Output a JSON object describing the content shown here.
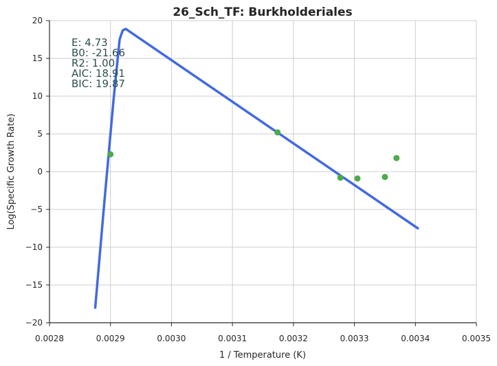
{
  "chart_data": {
    "type": "scatter",
    "title": "26_Sch_TF: Burkholderiales",
    "xlabel": "1 / Temperature (K)",
    "ylabel": "Log(Specific Growth Rate)",
    "xlim": [
      0.0028,
      0.0035
    ],
    "ylim": [
      -20,
      20
    ],
    "xticks": [
      "0.0028",
      "0.0029",
      "0.0030",
      "0.0031",
      "0.0032",
      "0.0033",
      "0.0034",
      "0.0035"
    ],
    "yticks": [
      "−20",
      "−15",
      "−10",
      "−5",
      "0",
      "5",
      "10",
      "15",
      "20"
    ],
    "xtick_values": [
      0.0028,
      0.0029,
      0.003,
      0.0031,
      0.0032,
      0.0033,
      0.0034,
      0.0035
    ],
    "ytick_values": [
      -20,
      -15,
      -10,
      -5,
      0,
      5,
      10,
      15,
      20
    ],
    "grid": true,
    "points": {
      "color": "#4daa4d",
      "x": [
        0.0029,
        0.003174,
        0.003277,
        0.003305,
        0.00335,
        0.003369
      ],
      "y": [
        2.3,
        5.2,
        -0.8,
        -0.9,
        -0.7,
        1.8
      ]
    },
    "fit_line": {
      "color": "#4169e1",
      "x": [
        0.002875,
        0.00289,
        0.002905,
        0.002915,
        0.00292,
        0.002925,
        0.003404
      ],
      "y": [
        -18.0,
        -4.0,
        9.5,
        17.5,
        18.7,
        18.9,
        -7.5
      ]
    },
    "annotations": [
      "E:  4.73",
      "B0:  -21.66",
      "R2:  1.00",
      "AIC: 18.91",
      "BIC: 19.87"
    ]
  }
}
